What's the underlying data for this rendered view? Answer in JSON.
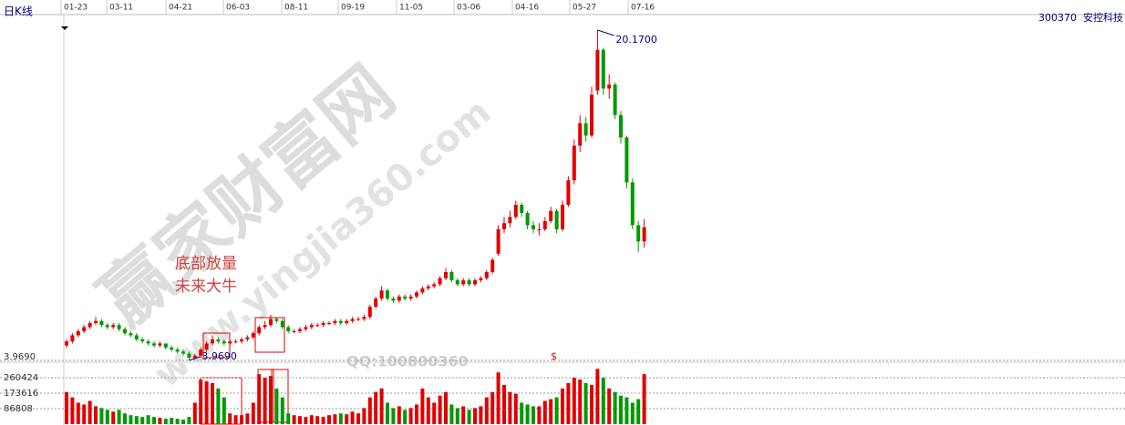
{
  "chart_data": {
    "type": "candlestick",
    "title": "日K线",
    "stock_code": "300370",
    "stock_name": "安控科技",
    "x_labels": [
      "01-23",
      "03-11",
      "04-21",
      "06-03",
      "08-11",
      "09-19",
      "11-05",
      "03-06",
      "04-16",
      "05-27",
      "07-16"
    ],
    "up_color": "#e00000",
    "down_color": "#009900",
    "ylim": [
      3.969,
      20.17
    ],
    "yticks": [
      {
        "value": 3.969,
        "label": "3.9690"
      }
    ],
    "high_label": "20.1700",
    "low_label": "3.9690",
    "volume_lim": [
      0,
      347232
    ],
    "volume_ticks": [
      260424,
      173616,
      86808
    ],
    "annotation_lines": [
      "底部放量",
      "未来大牛"
    ],
    "marker": "$",
    "watermark": {
      "site_name": "赢家财富网",
      "url": "www.yingjia360.com",
      "qq": "QQ:100800360"
    },
    "candles": [
      [
        4.7,
        5.0,
        4.6,
        4.9
      ],
      [
        4.9,
        5.3,
        4.8,
        5.2
      ],
      [
        5.2,
        5.5,
        5.1,
        5.4
      ],
      [
        5.4,
        5.7,
        5.3,
        5.6
      ],
      [
        5.6,
        5.9,
        5.5,
        5.8
      ],
      [
        5.8,
        6.1,
        5.7,
        5.9
      ],
      [
        5.9,
        6.0,
        5.6,
        5.7
      ],
      [
        5.7,
        5.8,
        5.5,
        5.6
      ],
      [
        5.6,
        5.8,
        5.5,
        5.7
      ],
      [
        5.7,
        5.8,
        5.4,
        5.5
      ],
      [
        5.5,
        5.6,
        5.2,
        5.3
      ],
      [
        5.3,
        5.4,
        5.1,
        5.2
      ],
      [
        5.2,
        5.3,
        4.9,
        5.0
      ],
      [
        5.0,
        5.1,
        4.8,
        4.9
      ],
      [
        4.9,
        5.0,
        4.7,
        4.8
      ],
      [
        4.8,
        4.9,
        4.6,
        4.7
      ],
      [
        4.7,
        4.9,
        4.6,
        4.8
      ],
      [
        4.8,
        4.8,
        4.5,
        4.6
      ],
      [
        4.6,
        4.7,
        4.4,
        4.5
      ],
      [
        4.5,
        4.6,
        4.3,
        4.4
      ],
      [
        4.4,
        4.5,
        4.2,
        4.3
      ],
      [
        4.3,
        4.4,
        3.969,
        4.1
      ],
      [
        4.1,
        4.3,
        4.0,
        4.2
      ],
      [
        4.2,
        4.6,
        4.1,
        4.5
      ],
      [
        4.5,
        4.9,
        4.4,
        4.8
      ],
      [
        4.8,
        5.2,
        4.7,
        5.0
      ],
      [
        5.0,
        5.1,
        4.8,
        4.9
      ],
      [
        4.9,
        5.0,
        4.7,
        4.8
      ],
      [
        4.8,
        5.0,
        4.7,
        4.9
      ],
      [
        4.9,
        5.0,
        4.8,
        4.9
      ],
      [
        4.9,
        5.1,
        4.8,
        5.0
      ],
      [
        5.0,
        5.2,
        4.9,
        5.1
      ],
      [
        5.1,
        5.4,
        5.0,
        5.3
      ],
      [
        5.3,
        5.7,
        5.2,
        5.6
      ],
      [
        5.6,
        5.9,
        5.5,
        5.7
      ],
      [
        5.7,
        6.2,
        5.6,
        6.0
      ],
      [
        6.0,
        6.1,
        5.8,
        5.9
      ],
      [
        5.9,
        6.0,
        5.5,
        5.6
      ],
      [
        5.6,
        5.7,
        5.3,
        5.4
      ],
      [
        5.4,
        5.5,
        5.3,
        5.4
      ],
      [
        5.4,
        5.6,
        5.3,
        5.5
      ],
      [
        5.5,
        5.7,
        5.4,
        5.6
      ],
      [
        5.6,
        5.8,
        5.5,
        5.7
      ],
      [
        5.7,
        5.8,
        5.6,
        5.7
      ],
      [
        5.7,
        5.9,
        5.6,
        5.8
      ],
      [
        5.8,
        5.9,
        5.7,
        5.8
      ],
      [
        5.8,
        6.0,
        5.7,
        5.9
      ],
      [
        5.9,
        6.0,
        5.7,
        5.8
      ],
      [
        5.8,
        6.0,
        5.7,
        5.9
      ],
      [
        5.9,
        6.1,
        5.8,
        6.0
      ],
      [
        6.0,
        6.1,
        5.9,
        6.0
      ],
      [
        6.0,
        6.2,
        5.9,
        6.1
      ],
      [
        6.1,
        6.7,
        6.0,
        6.6
      ],
      [
        6.6,
        7.1,
        6.5,
        7.0
      ],
      [
        7.0,
        7.6,
        6.9,
        7.4
      ],
      [
        7.4,
        7.5,
        6.9,
        7.0
      ],
      [
        7.0,
        7.1,
        6.8,
        6.9
      ],
      [
        6.9,
        7.2,
        6.8,
        7.1
      ],
      [
        7.1,
        7.2,
        6.9,
        7.0
      ],
      [
        7.0,
        7.2,
        6.9,
        7.1
      ],
      [
        7.1,
        7.4,
        7.0,
        7.3
      ],
      [
        7.3,
        7.6,
        7.2,
        7.5
      ],
      [
        7.5,
        7.7,
        7.4,
        7.6
      ],
      [
        7.6,
        7.8,
        7.5,
        7.7
      ],
      [
        7.7,
        8.1,
        7.6,
        8.0
      ],
      [
        8.0,
        8.5,
        7.9,
        8.3
      ],
      [
        8.3,
        8.4,
        7.8,
        7.9
      ],
      [
        7.9,
        8.0,
        7.6,
        7.7
      ],
      [
        7.7,
        8.0,
        7.6,
        7.9
      ],
      [
        7.9,
        8.0,
        7.6,
        7.7
      ],
      [
        7.7,
        8.0,
        7.6,
        7.9
      ],
      [
        7.9,
        8.1,
        7.8,
        8.0
      ],
      [
        8.0,
        8.4,
        7.9,
        8.3
      ],
      [
        8.3,
        9.0,
        8.2,
        8.9
      ],
      [
        9.2,
        10.6,
        9.1,
        10.4
      ],
      [
        10.4,
        11.0,
        10.2,
        10.7
      ],
      [
        10.7,
        11.3,
        10.5,
        11.0
      ],
      [
        11.0,
        11.8,
        10.9,
        11.6
      ],
      [
        11.6,
        11.7,
        11.0,
        11.2
      ],
      [
        11.2,
        11.3,
        10.4,
        10.6
      ],
      [
        10.6,
        10.8,
        10.2,
        10.4
      ],
      [
        10.4,
        10.7,
        10.1,
        10.4
      ],
      [
        10.4,
        11.0,
        10.3,
        10.8
      ],
      [
        10.8,
        11.5,
        10.7,
        11.3
      ],
      [
        11.3,
        11.4,
        10.2,
        10.4
      ],
      [
        10.4,
        11.8,
        10.3,
        11.6
      ],
      [
        11.6,
        13.0,
        11.5,
        12.8
      ],
      [
        12.8,
        14.8,
        12.6,
        14.5
      ],
      [
        14.5,
        16.0,
        14.2,
        15.6
      ],
      [
        15.6,
        15.9,
        14.7,
        15.0
      ],
      [
        15.0,
        17.4,
        14.9,
        17.0
      ],
      [
        17.2,
        20.17,
        17.0,
        19.2
      ],
      [
        19.2,
        19.3,
        17.0,
        17.3
      ],
      [
        17.3,
        18.0,
        16.8,
        17.5
      ],
      [
        17.5,
        17.6,
        15.8,
        16.0
      ],
      [
        16.0,
        16.2,
        14.6,
        14.9
      ],
      [
        14.9,
        15.0,
        12.4,
        12.7
      ],
      [
        12.7,
        12.9,
        10.4,
        10.6
      ],
      [
        10.6,
        10.8,
        9.3,
        9.8
      ],
      [
        9.8,
        10.9,
        9.5,
        10.5
      ]
    ],
    "volumes": [
      180000,
      150000,
      120000,
      110000,
      130000,
      100000,
      90000,
      80000,
      70000,
      80000,
      60000,
      50000,
      45000,
      40000,
      50000,
      40000,
      35000,
      30000,
      35000,
      30000,
      25000,
      40000,
      120000,
      250000,
      240000,
      230000,
      200000,
      150000,
      60000,
      50000,
      50000,
      60000,
      120000,
      280000,
      260000,
      270000,
      200000,
      150000,
      60000,
      50000,
      45000,
      40000,
      50000,
      45000,
      40000,
      50000,
      55000,
      60000,
      55000,
      70000,
      60000,
      90000,
      150000,
      180000,
      200000,
      120000,
      90000,
      100000,
      80000,
      90000,
      110000,
      200000,
      150000,
      120000,
      160000,
      180000,
      110000,
      90000,
      100000,
      80000,
      90000,
      100000,
      150000,
      180000,
      290000,
      220000,
      180000,
      170000,
      120000,
      110000,
      100000,
      100000,
      130000,
      140000,
      150000,
      200000,
      230000,
      260000,
      250000,
      230000,
      220000,
      310000,
      260000,
      200000,
      180000,
      160000,
      150000,
      120000,
      140000,
      280000
    ]
  }
}
